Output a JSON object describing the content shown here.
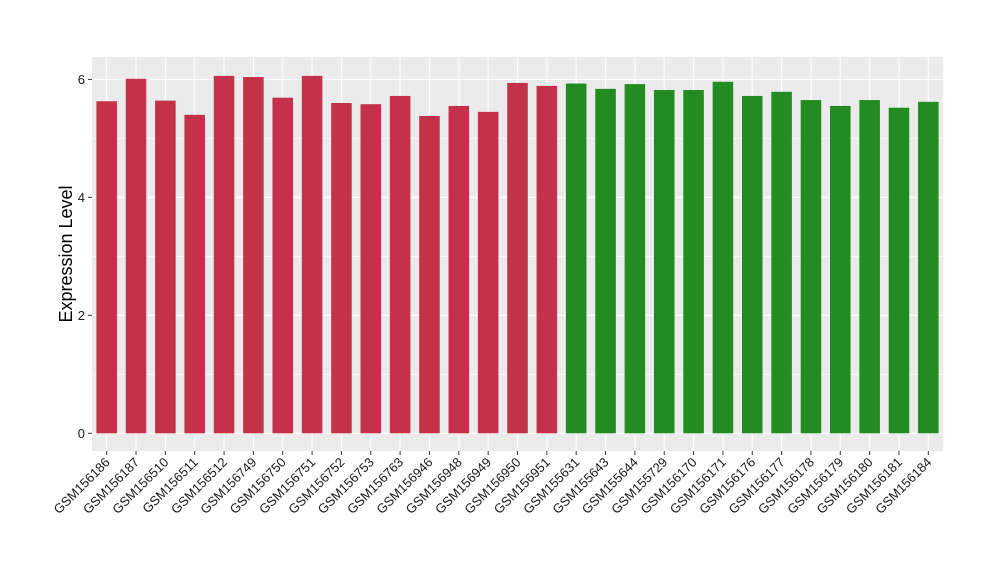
{
  "chart_data": {
    "type": "bar",
    "title": "",
    "xlabel": "",
    "ylabel": "Expression Level",
    "ylim": [
      -0.3,
      6.38
    ],
    "yticks": [
      0,
      2,
      4,
      6
    ],
    "grid": true,
    "legend": "none",
    "colors": {
      "group_red": "#c4314b",
      "group_green": "#228b22",
      "panel_bg": "#ebebeb",
      "grid": "#ffffff"
    },
    "categories": [
      "GSM156186",
      "GSM156187",
      "GSM156510",
      "GSM156511",
      "GSM156512",
      "GSM156749",
      "GSM156750",
      "GSM156751",
      "GSM156752",
      "GSM156753",
      "GSM156763",
      "GSM156946",
      "GSM156948",
      "GSM156949",
      "GSM156950",
      "GSM156951",
      "GSM155631",
      "GSM155643",
      "GSM155644",
      "GSM155729",
      "GSM156170",
      "GSM156171",
      "GSM156176",
      "GSM156177",
      "GSM156178",
      "GSM156179",
      "GSM156180",
      "GSM156181",
      "GSM156184"
    ],
    "values": [
      5.63,
      6.01,
      5.64,
      5.4,
      6.06,
      6.04,
      5.69,
      6.06,
      5.6,
      5.58,
      5.72,
      5.38,
      5.55,
      5.45,
      5.94,
      5.89,
      5.93,
      5.84,
      5.92,
      5.82,
      5.82,
      5.96,
      5.72,
      5.79,
      5.65,
      5.55,
      5.65,
      5.52,
      5.62
    ],
    "groups": [
      "red",
      "red",
      "red",
      "red",
      "red",
      "red",
      "red",
      "red",
      "red",
      "red",
      "red",
      "red",
      "red",
      "red",
      "red",
      "red",
      "green",
      "green",
      "green",
      "green",
      "green",
      "green",
      "green",
      "green",
      "green",
      "green",
      "green",
      "green",
      "green"
    ]
  }
}
